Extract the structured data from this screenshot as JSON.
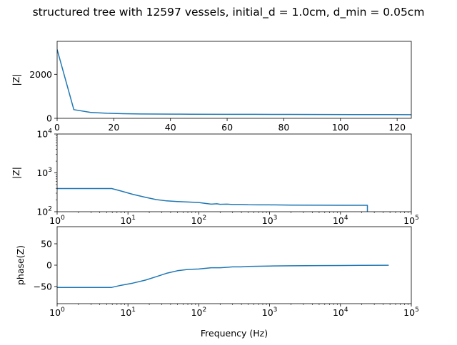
{
  "title": "structured tree with 12597 vessels, initial_d = 1.0cm, d_min = 0.05cm",
  "xlabel": "Frequency (Hz)",
  "colors": {
    "line": "#1f77b4",
    "axes": "#000000",
    "background": "#ffffff"
  },
  "chart_data": [
    {
      "type": "line",
      "ylabel": "|Z|",
      "x_scale": "linear",
      "y_scale": "linear",
      "xlim": [
        0,
        125
      ],
      "ylim": [
        0,
        3500
      ],
      "x_ticks": [
        0,
        20,
        40,
        60,
        80,
        100,
        120
      ],
      "x_tick_labels": [
        "0",
        "20",
        "40",
        "60",
        "80",
        "100",
        "120"
      ],
      "y_ticks": [
        0,
        2000
      ],
      "y_tick_labels": [
        "0",
        "2000"
      ],
      "grid": false,
      "x": [
        0,
        5.9,
        11.7,
        17.6,
        23.4,
        29.3,
        35.2,
        41,
        47,
        59,
        70,
        82,
        94,
        105,
        117,
        125
      ],
      "y": [
        3130,
        395,
        270,
        230,
        212,
        200,
        195,
        192,
        188,
        184,
        181,
        178,
        175,
        172,
        169,
        167
      ]
    },
    {
      "type": "line",
      "ylabel": "|Z|",
      "x_scale": "log",
      "y_scale": "log",
      "xlim": [
        1,
        100000
      ],
      "ylim": [
        100,
        10000
      ],
      "x_ticks": [
        1,
        10,
        100,
        1000,
        10000,
        100000
      ],
      "x_tick_labels": [
        "10^0",
        "10^1",
        "10^2",
        "10^3",
        "10^4",
        "10^5"
      ],
      "y_ticks": [
        100,
        1000,
        10000
      ],
      "y_tick_labels": [
        "10^2",
        "10^3",
        "10^4"
      ],
      "grid": false,
      "x": [
        1,
        2,
        5.9,
        8,
        11.7,
        17.6,
        25,
        35,
        50,
        70,
        100,
        130,
        150,
        180,
        200,
        250,
        300,
        400,
        500,
        700,
        1000,
        2000,
        5000,
        10000,
        20000,
        24000,
        24000
      ],
      "y": [
        395,
        395,
        395,
        340,
        280,
        235,
        205,
        190,
        183,
        178,
        172,
        162,
        157,
        160,
        155,
        157,
        153,
        153,
        151,
        150,
        150,
        148,
        147,
        146,
        146,
        146,
        100
      ]
    },
    {
      "type": "line",
      "ylabel": "phase(Z)",
      "x_scale": "log",
      "y_scale": "linear",
      "xlim": [
        1,
        100000
      ],
      "ylim": [
        -90,
        90
      ],
      "x_ticks": [
        1,
        10,
        100,
        1000,
        10000,
        100000
      ],
      "x_tick_labels": [
        "10^0",
        "10^1",
        "10^2",
        "10^3",
        "10^4",
        "10^5"
      ],
      "y_ticks": [
        -50,
        0,
        50
      ],
      "y_tick_labels": [
        "−50",
        "0",
        "50"
      ],
      "grid": false,
      "x": [
        1,
        2,
        5.9,
        8,
        11.7,
        17.6,
        25,
        35,
        50,
        70,
        100,
        130,
        150,
        200,
        250,
        300,
        400,
        500,
        700,
        1000,
        2000,
        5000,
        10000,
        20000,
        48000
      ],
      "y": [
        -52,
        -52,
        -52,
        -47,
        -42,
        -35,
        -27,
        -19,
        -13,
        -10,
        -9,
        -7,
        -6,
        -6,
        -5,
        -4,
        -4,
        -3,
        -2.5,
        -2,
        -1.5,
        -1,
        -0.8,
        -0.5,
        -0.3
      ]
    }
  ]
}
